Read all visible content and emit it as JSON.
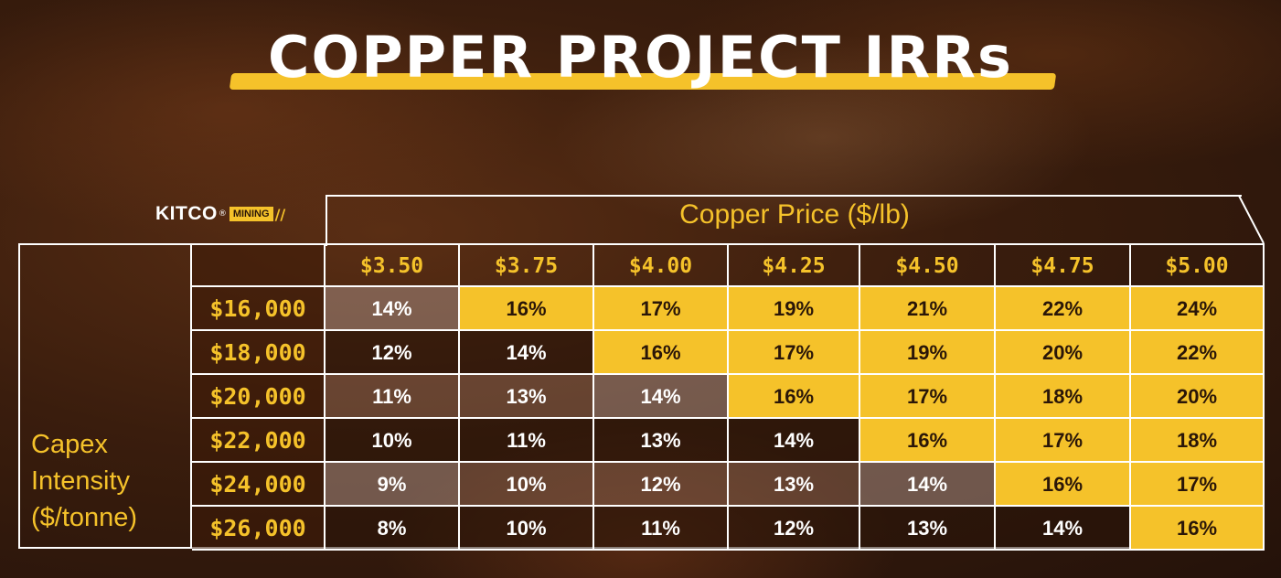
{
  "title": "COPPER PROJECT IRRs",
  "logo": {
    "brand": "KITCO",
    "registered": "®",
    "tag": "MINING"
  },
  "chart_data": {
    "type": "table",
    "title": "COPPER PROJECT IRRs",
    "column_header": "Copper Price ($/lb)",
    "row_header": "Capex Intensity ($/tonne)",
    "columns": [
      "$3.50",
      "$3.75",
      "$4.00",
      "$4.25",
      "$4.50",
      "$4.75",
      "$5.00"
    ],
    "rows": [
      "$16,000",
      "$18,000",
      "$20,000",
      "$22,000",
      "$24,000",
      "$26,000"
    ],
    "values": [
      [
        "14%",
        "16%",
        "17%",
        "19%",
        "21%",
        "22%",
        "24%"
      ],
      [
        "12%",
        "14%",
        "16%",
        "17%",
        "19%",
        "20%",
        "22%"
      ],
      [
        "11%",
        "13%",
        "14%",
        "16%",
        "17%",
        "18%",
        "20%"
      ],
      [
        "10%",
        "11%",
        "13%",
        "14%",
        "16%",
        "17%",
        "18%"
      ],
      [
        "9%",
        "10%",
        "12%",
        "13%",
        "14%",
        "16%",
        "17%"
      ],
      [
        "8%",
        "10%",
        "11%",
        "12%",
        "13%",
        "14%",
        "16%"
      ]
    ],
    "highlight_threshold": "16%",
    "colors": {
      "highlight": "#f5c22a",
      "text_dark": "#2a1608",
      "text_light": "#ffffff"
    }
  }
}
